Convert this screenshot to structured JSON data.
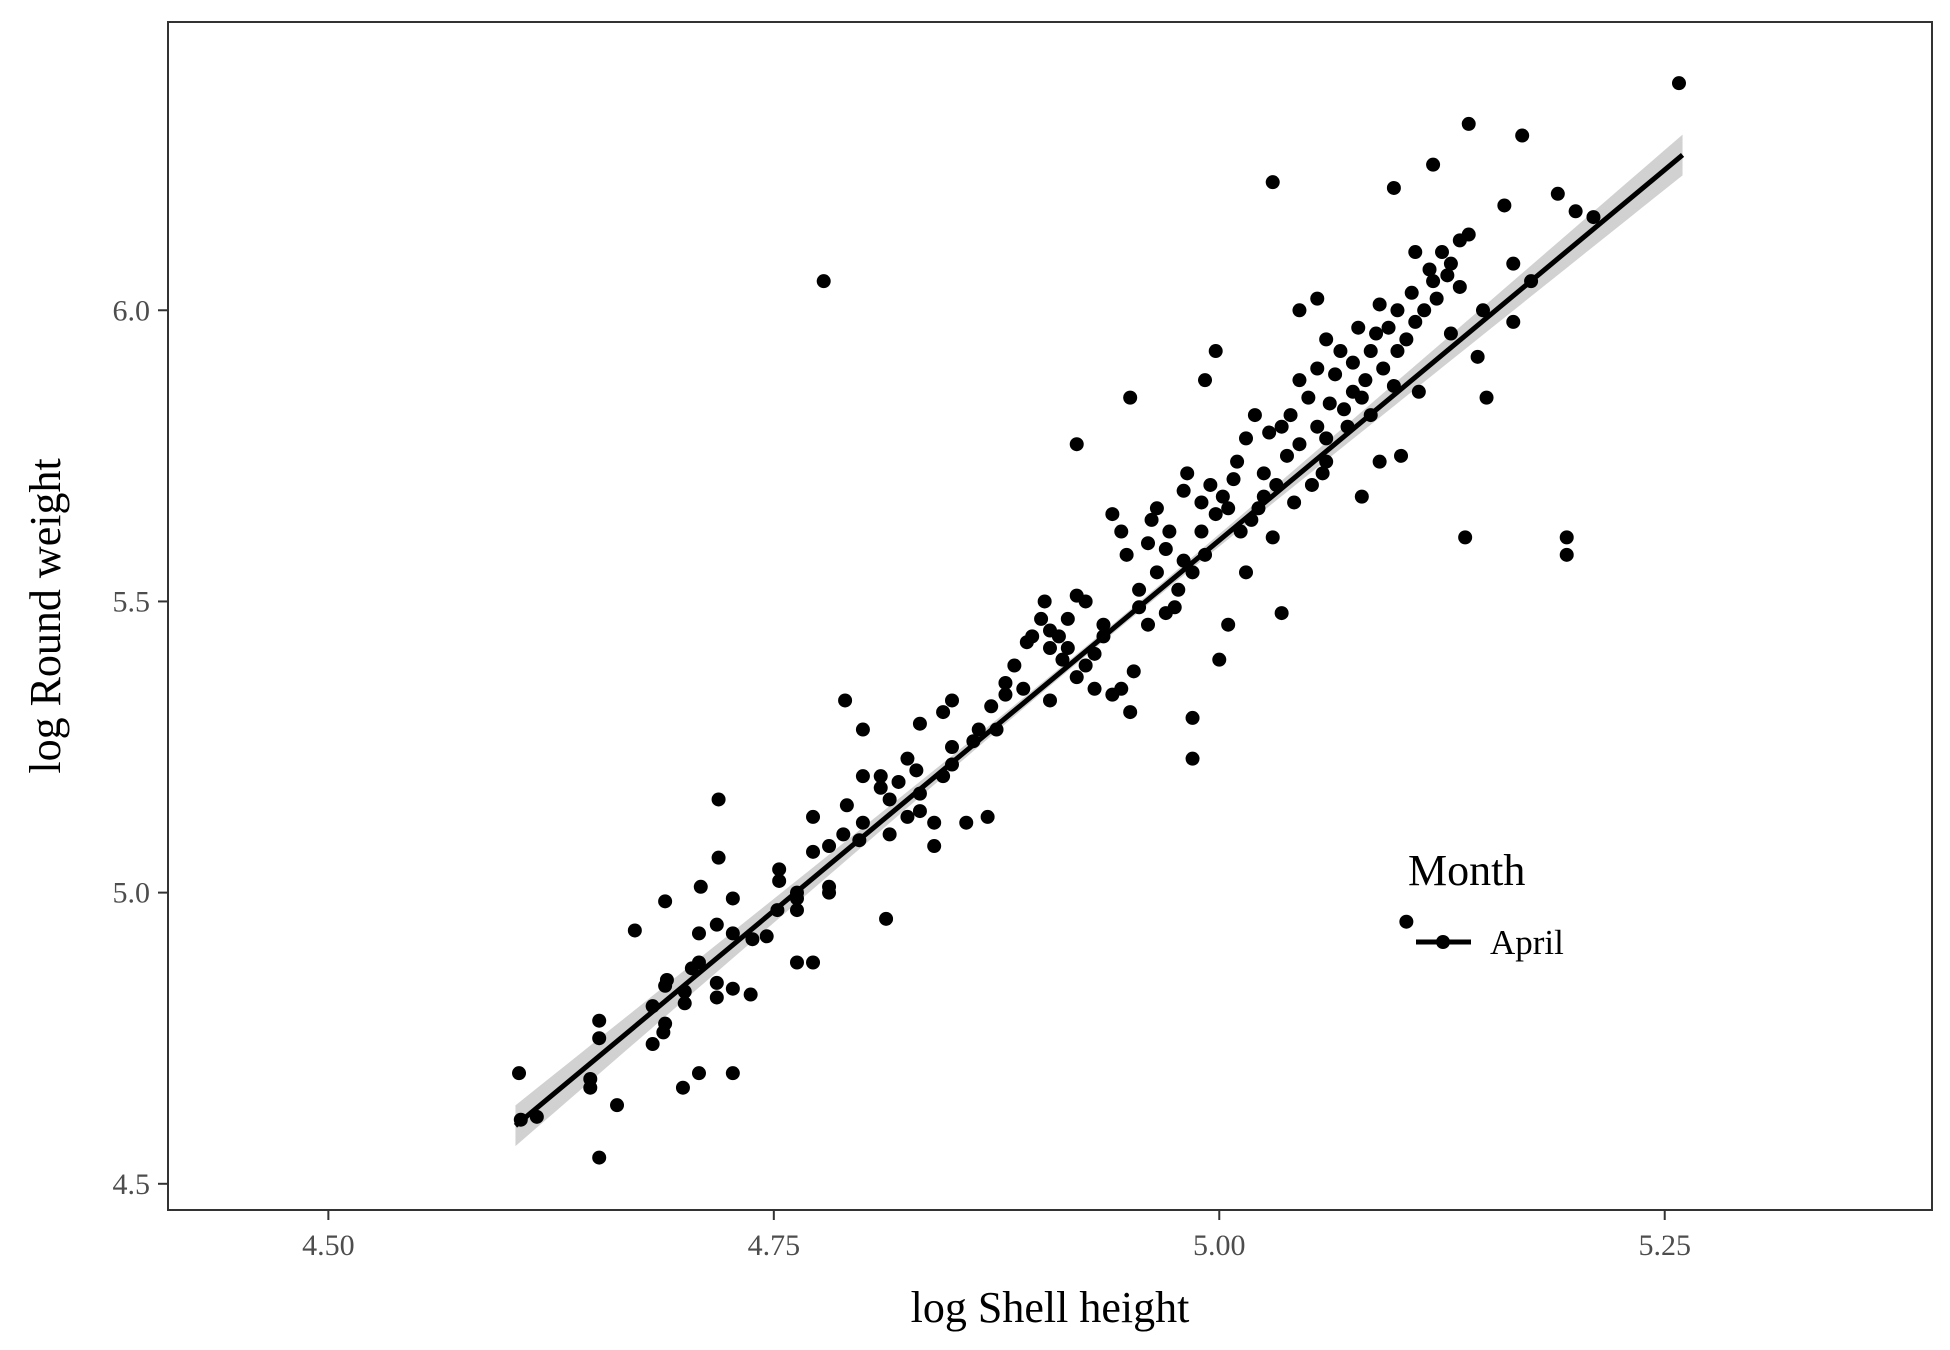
{
  "chart_data": {
    "type": "scatter",
    "title": "",
    "xlabel": "log Shell height",
    "ylabel": "log Round weight",
    "xlim": [
      4.41,
      5.4
    ],
    "ylim": [
      4.455,
      6.495
    ],
    "x_ticks": [
      "4.50",
      "4.75",
      "5.00",
      "5.25"
    ],
    "x_tick_values": [
      4.5,
      4.75,
      5.0,
      5.25
    ],
    "y_ticks": [
      "4.5",
      "5.0",
      "5.5",
      "6.0"
    ],
    "y_tick_values": [
      4.5,
      5.0,
      5.5,
      6.0
    ],
    "grid": false,
    "legend": {
      "title": "Month",
      "position": "inside-bottom-right",
      "entries": [
        {
          "label": "April"
        }
      ]
    },
    "colors": {
      "points": "#000000",
      "line": "#000000",
      "ribbon": "#bdbdbd"
    },
    "fit": {
      "type": "linear",
      "x_range": [
        4.605,
        5.26
      ],
      "intercept": -7.12,
      "slope": 2.545,
      "ci_halfwidth_ends": 0.035,
      "ci_halfwidth_mid": 0.008
    },
    "series": [
      {
        "name": "April",
        "points": [
          [
            4.607,
            4.69
          ],
          [
            4.608,
            4.61
          ],
          [
            4.617,
            4.615
          ],
          [
            4.647,
            4.68
          ],
          [
            4.647,
            4.665
          ],
          [
            4.652,
            4.78
          ],
          [
            4.652,
            4.75
          ],
          [
            4.652,
            4.545
          ],
          [
            4.662,
            4.635
          ],
          [
            4.672,
            4.935
          ],
          [
            4.682,
            4.74
          ],
          [
            4.682,
            4.805
          ],
          [
            4.688,
            4.76
          ],
          [
            4.689,
            4.775
          ],
          [
            4.689,
            4.84
          ],
          [
            4.69,
            4.85
          ],
          [
            4.689,
            4.985
          ],
          [
            4.699,
            4.665
          ],
          [
            4.7,
            4.81
          ],
          [
            4.7,
            4.83
          ],
          [
            4.704,
            4.87
          ],
          [
            4.708,
            4.88
          ],
          [
            4.708,
            4.93
          ],
          [
            4.708,
            4.69
          ],
          [
            4.709,
            5.01
          ],
          [
            4.718,
            4.82
          ],
          [
            4.718,
            4.845
          ],
          [
            4.718,
            4.945
          ],
          [
            4.719,
            5.06
          ],
          [
            4.719,
            5.16
          ],
          [
            4.727,
            4.69
          ],
          [
            4.727,
            4.835
          ],
          [
            4.727,
            4.93
          ],
          [
            4.727,
            4.99
          ],
          [
            4.737,
            4.825
          ],
          [
            4.738,
            4.92
          ],
          [
            4.746,
            4.925
          ],
          [
            4.752,
            4.97
          ],
          [
            4.753,
            5.04
          ],
          [
            4.753,
            5.02
          ],
          [
            4.763,
            4.88
          ],
          [
            4.763,
            4.97
          ],
          [
            4.763,
            4.99
          ],
          [
            4.763,
            5.0
          ],
          [
            4.772,
            4.88
          ],
          [
            4.772,
            5.07
          ],
          [
            4.772,
            5.13
          ],
          [
            4.781,
            5.0
          ],
          [
            4.781,
            5.01
          ],
          [
            4.781,
            5.08
          ],
          [
            4.789,
            5.1
          ],
          [
            4.79,
            5.33
          ],
          [
            4.791,
            5.15
          ],
          [
            4.798,
            5.09
          ],
          [
            4.8,
            5.12
          ],
          [
            4.8,
            5.2
          ],
          [
            4.8,
            5.28
          ],
          [
            4.81,
            5.18
          ],
          [
            4.81,
            5.2
          ],
          [
            4.813,
            4.955
          ],
          [
            4.815,
            5.1
          ],
          [
            4.815,
            5.16
          ],
          [
            4.82,
            5.19
          ],
          [
            4.825,
            5.23
          ],
          [
            4.825,
            5.13
          ],
          [
            4.83,
            5.21
          ],
          [
            4.832,
            5.14
          ],
          [
            4.832,
            5.17
          ],
          [
            4.832,
            5.29
          ],
          [
            4.84,
            5.08
          ],
          [
            4.84,
            5.12
          ],
          [
            4.845,
            5.2
          ],
          [
            4.845,
            5.31
          ],
          [
            4.85,
            5.33
          ],
          [
            4.85,
            5.22
          ],
          [
            4.85,
            5.25
          ],
          [
            4.858,
            5.12
          ],
          [
            4.862,
            5.26
          ],
          [
            4.865,
            5.28
          ],
          [
            4.87,
            5.13
          ],
          [
            4.872,
            5.32
          ],
          [
            4.875,
            5.28
          ],
          [
            4.88,
            5.34
          ],
          [
            4.88,
            5.36
          ],
          [
            4.885,
            5.39
          ],
          [
            4.89,
            5.35
          ],
          [
            4.892,
            5.43
          ],
          [
            4.895,
            5.44
          ],
          [
            4.9,
            5.47
          ],
          [
            4.902,
            5.5
          ],
          [
            4.905,
            5.33
          ],
          [
            4.905,
            5.42
          ],
          [
            4.905,
            5.45
          ],
          [
            4.91,
            5.44
          ],
          [
            4.912,
            5.4
          ],
          [
            4.915,
            5.42
          ],
          [
            4.915,
            5.47
          ],
          [
            4.92,
            5.37
          ],
          [
            4.92,
            5.51
          ],
          [
            4.925,
            5.5
          ],
          [
            4.925,
            5.39
          ],
          [
            4.93,
            5.35
          ],
          [
            4.93,
            5.41
          ],
          [
            4.935,
            5.46
          ],
          [
            4.935,
            5.44
          ],
          [
            4.94,
            5.34
          ],
          [
            4.94,
            5.65
          ],
          [
            4.945,
            5.35
          ],
          [
            4.945,
            5.62
          ],
          [
            4.948,
            5.58
          ],
          [
            4.95,
            5.31
          ],
          [
            4.952,
            5.38
          ],
          [
            4.955,
            5.49
          ],
          [
            4.955,
            5.52
          ],
          [
            4.96,
            5.46
          ],
          [
            4.96,
            5.6
          ],
          [
            4.962,
            5.64
          ],
          [
            4.965,
            5.66
          ],
          [
            4.965,
            5.55
          ],
          [
            4.97,
            5.48
          ],
          [
            4.97,
            5.59
          ],
          [
            4.972,
            5.62
          ],
          [
            4.975,
            5.49
          ],
          [
            4.977,
            5.52
          ],
          [
            4.98,
            5.57
          ],
          [
            4.98,
            5.69
          ],
          [
            4.982,
            5.72
          ],
          [
            4.985,
            5.55
          ],
          [
            4.985,
            5.3
          ],
          [
            4.985,
            5.23
          ],
          [
            4.99,
            5.67
          ],
          [
            4.99,
            5.62
          ],
          [
            4.992,
            5.58
          ],
          [
            4.995,
            5.7
          ],
          [
            4.998,
            5.65
          ],
          [
            5.0,
            5.4
          ],
          [
            5.002,
            5.68
          ],
          [
            5.005,
            5.66
          ],
          [
            5.005,
            5.46
          ],
          [
            5.008,
            5.71
          ],
          [
            5.01,
            5.74
          ],
          [
            5.012,
            5.62
          ],
          [
            5.015,
            5.55
          ],
          [
            5.015,
            5.78
          ],
          [
            5.018,
            5.64
          ],
          [
            5.02,
            5.82
          ],
          [
            5.022,
            5.66
          ],
          [
            5.025,
            5.68
          ],
          [
            5.025,
            5.72
          ],
          [
            5.028,
            5.79
          ],
          [
            5.03,
            5.61
          ],
          [
            5.032,
            5.7
          ],
          [
            5.035,
            5.8
          ],
          [
            5.035,
            5.48
          ],
          [
            5.038,
            5.75
          ],
          [
            5.04,
            5.82
          ],
          [
            5.042,
            5.67
          ],
          [
            5.045,
            5.77
          ],
          [
            5.045,
            5.88
          ],
          [
            5.05,
            5.85
          ],
          [
            5.052,
            5.7
          ],
          [
            5.055,
            5.8
          ],
          [
            5.055,
            5.9
          ],
          [
            5.058,
            5.72
          ],
          [
            5.06,
            5.78
          ],
          [
            5.06,
            5.95
          ],
          [
            5.062,
            5.84
          ],
          [
            5.065,
            5.89
          ],
          [
            5.068,
            5.93
          ],
          [
            5.07,
            5.83
          ],
          [
            5.072,
            5.8
          ],
          [
            5.075,
            5.86
          ],
          [
            5.075,
            5.91
          ],
          [
            5.078,
            5.97
          ],
          [
            5.08,
            5.68
          ],
          [
            5.08,
            5.85
          ],
          [
            5.082,
            5.88
          ],
          [
            5.085,
            5.82
          ],
          [
            5.085,
            5.93
          ],
          [
            5.088,
            5.96
          ],
          [
            5.09,
            5.74
          ],
          [
            5.09,
            6.01
          ],
          [
            5.092,
            5.9
          ],
          [
            5.095,
            5.97
          ],
          [
            5.098,
            5.87
          ],
          [
            5.1,
            5.93
          ],
          [
            5.1,
            6.0
          ],
          [
            5.102,
            5.75
          ],
          [
            5.105,
            5.95
          ],
          [
            5.108,
            6.03
          ],
          [
            5.11,
            5.98
          ],
          [
            5.11,
            6.1
          ],
          [
            5.112,
            5.86
          ],
          [
            5.115,
            6.0
          ],
          [
            5.118,
            6.07
          ],
          [
            5.12,
            6.05
          ],
          [
            5.122,
            6.02
          ],
          [
            5.125,
            6.1
          ],
          [
            5.128,
            6.06
          ],
          [
            5.13,
            5.96
          ],
          [
            5.13,
            6.08
          ],
          [
            5.135,
            6.12
          ],
          [
            5.135,
            6.04
          ],
          [
            5.138,
            5.61
          ],
          [
            5.14,
            6.13
          ],
          [
            5.145,
            5.92
          ],
          [
            5.148,
            6.0
          ],
          [
            5.15,
            5.85
          ],
          [
            5.16,
            6.18
          ],
          [
            5.165,
            6.08
          ],
          [
            5.165,
            5.98
          ],
          [
            5.17,
            6.3
          ],
          [
            5.175,
            6.05
          ],
          [
            5.19,
            6.2
          ],
          [
            5.195,
            5.61
          ],
          [
            5.195,
            5.58
          ],
          [
            5.2,
            6.17
          ],
          [
            5.21,
            6.16
          ],
          [
            5.258,
            6.39
          ],
          [
            5.14,
            6.32
          ],
          [
            5.12,
            6.25
          ],
          [
            5.098,
            6.21
          ],
          [
            5.03,
            6.22
          ],
          [
            4.998,
            5.93
          ],
          [
            4.992,
            5.88
          ],
          [
            4.95,
            5.85
          ],
          [
            4.92,
            5.77
          ],
          [
            4.778,
            6.05
          ],
          [
            5.105,
            4.95
          ],
          [
            5.06,
            5.74
          ],
          [
            5.055,
            6.02
          ],
          [
            5.045,
            6.0
          ]
        ]
      }
    ]
  }
}
